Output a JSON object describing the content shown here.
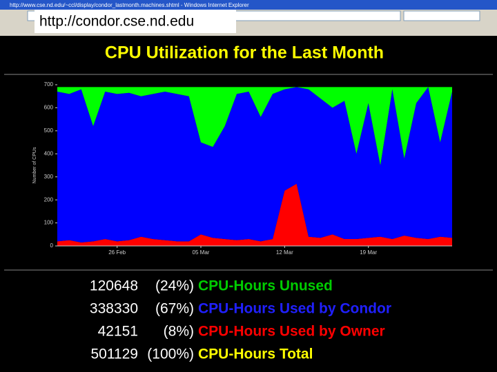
{
  "browser": {
    "window_title": "http://www.cse.nd.edu/~ccl/display/condor_lastmonth.machines.shtml - Windows Internet Explorer",
    "callout_url": "http://condor.cse.nd.edu"
  },
  "page_title": "CPU Utilization for the Last Month",
  "chart_data": {
    "type": "area",
    "stacked": true,
    "y_label": "Number of CPUs",
    "categories": [
      null,
      null,
      null,
      null,
      null,
      "26 Feb",
      null,
      null,
      null,
      null,
      null,
      null,
      "05 Mar",
      null,
      null,
      null,
      null,
      null,
      null,
      "12 Mar",
      null,
      null,
      null,
      null,
      null,
      null,
      "19 Mar",
      null,
      null,
      null,
      null,
      null,
      null,
      null
    ],
    "series": [
      {
        "name": "Owner",
        "color": "#ff0000",
        "values": [
          20,
          25,
          15,
          20,
          30,
          20,
          25,
          40,
          30,
          25,
          20,
          20,
          50,
          35,
          30,
          25,
          30,
          20,
          30,
          240,
          270,
          40,
          35,
          50,
          30,
          30,
          35,
          40,
          30,
          45,
          35,
          30,
          40,
          35
        ]
      },
      {
        "name": "Condor",
        "color": "#0000ff",
        "values": [
          650,
          635,
          665,
          500,
          640,
          640,
          640,
          610,
          630,
          645,
          640,
          630,
          400,
          395,
          490,
          635,
          640,
          540,
          630,
          440,
          420,
          640,
          605,
          550,
          600,
          370,
          585,
          310,
          650,
          335,
          585,
          660,
          410,
          635
        ]
      },
      {
        "name": "Unused",
        "color": "#00ff00",
        "values": [
          20,
          30,
          10,
          170,
          20,
          30,
          25,
          40,
          30,
          20,
          30,
          40,
          240,
          260,
          170,
          30,
          20,
          130,
          30,
          10,
          0,
          10,
          50,
          90,
          60,
          290,
          70,
          340,
          10,
          310,
          70,
          0,
          240,
          20
        ]
      }
    ],
    "ylim": [
      0,
      700
    ],
    "yticks": [
      0,
      100,
      200,
      300,
      400,
      500,
      600,
      700
    ]
  },
  "summary": {
    "rows": [
      [
        "120648",
        "(24%)",
        "CPU-Hours Unused"
      ],
      [
        "338330",
        "(67%)",
        "CPU-Hours Used by Condor"
      ],
      [
        "42151",
        "(8%)",
        "CPU-Hours Used by Owner"
      ],
      [
        "501129",
        "(100%)",
        "CPU-Hours Total"
      ]
    ]
  }
}
